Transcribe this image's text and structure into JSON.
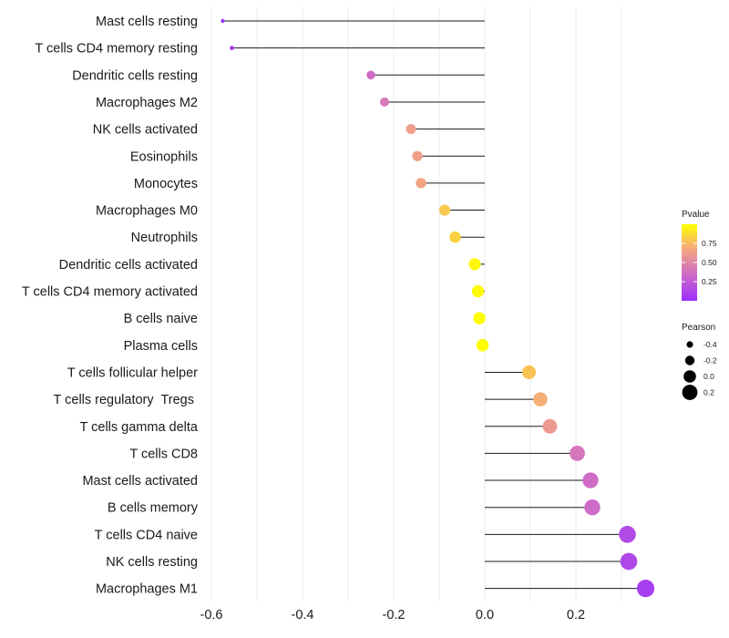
{
  "chart_data": {
    "type": "lollipop",
    "title": "",
    "xlabel": "",
    "ylabel": "",
    "xlim": [
      -0.62,
      0.37
    ],
    "x_ticks": [
      -0.6,
      -0.4,
      -0.2,
      0.0,
      0.2
    ],
    "x_tick_labels": [
      "-0.6",
      "-0.4",
      "-0.2",
      "0.0",
      "0.2"
    ],
    "categories": [
      "Mast cells resting",
      "T cells CD4 memory resting",
      "Dendritic cells resting",
      "Macrophages M2",
      "NK cells activated",
      "Eosinophils",
      "Monocytes",
      "Macrophages M0",
      "Neutrophils",
      "Dendritic cells activated",
      "T cells CD4 memory activated",
      "B cells naive",
      "Plasma cells",
      "T cells follicular helper",
      "T cells regulatory  Tregs ",
      "T cells gamma delta",
      "T cells CD8",
      "Mast cells activated",
      "B cells memory",
      "T cells CD4 naive",
      "NK cells resting",
      "Macrophages M1"
    ],
    "pearson": [
      -0.575,
      -0.555,
      -0.25,
      -0.22,
      -0.162,
      -0.148,
      -0.14,
      -0.088,
      -0.065,
      -0.022,
      -0.015,
      -0.012,
      -0.005,
      0.097,
      0.122,
      0.143,
      0.203,
      0.232,
      0.236,
      0.313,
      0.316,
      0.353
    ],
    "pvalue": [
      0.02,
      0.03,
      0.35,
      0.42,
      0.62,
      0.63,
      0.66,
      0.8,
      0.83,
      0.97,
      0.98,
      0.99,
      0.99,
      0.78,
      0.7,
      0.6,
      0.4,
      0.35,
      0.34,
      0.15,
      0.14,
      0.08
    ],
    "legend_color": {
      "title": "Pvalue",
      "ticks": [
        0.25,
        0.5,
        0.75
      ],
      "tick_labels": [
        "0.25",
        "0.50",
        "0.75"
      ],
      "range": [
        0.0,
        1.0
      ],
      "colors": [
        "#9b30ff",
        "#cd69c9",
        "#f4a582",
        "#ffff00"
      ]
    },
    "legend_size": {
      "title": "Pearson",
      "values": [
        -0.4,
        -0.2,
        0.0,
        0.2
      ],
      "labels": [
        "-0.4",
        "-0.2",
        "0.0",
        "0.2"
      ]
    },
    "grid": true,
    "legend_position": "right"
  }
}
